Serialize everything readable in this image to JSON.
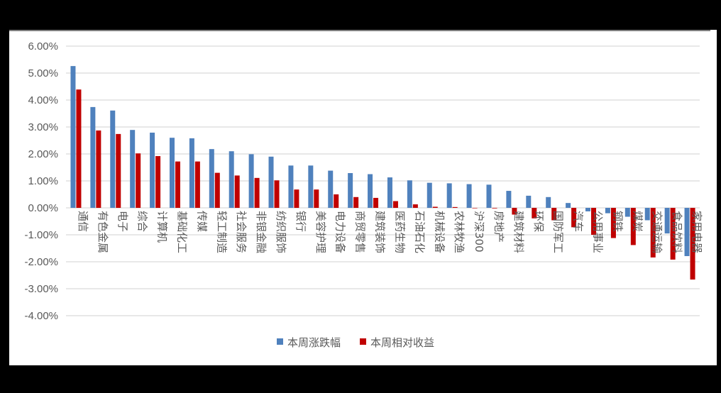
{
  "chart_data": {
    "type": "bar",
    "title": "",
    "xlabel": "",
    "ylabel": "",
    "ylim": [
      -0.04,
      0.06
    ],
    "yticks": [
      "6.00%",
      "5.00%",
      "4.00%",
      "3.00%",
      "2.00%",
      "1.00%",
      "0.00%",
      "-1.00%",
      "-2.00%",
      "-3.00%",
      "-4.00%"
    ],
    "grid": true,
    "legend_position": "bottom",
    "categories": [
      "通信",
      "有色金属",
      "电子",
      "综合",
      "计算机",
      "基础化工",
      "传媒",
      "轻工制造",
      "社会服务",
      "非银金融",
      "纺织服饰",
      "银行",
      "美容护理",
      "电力设备",
      "商贸零售",
      "建筑装饰",
      "医药生物",
      "石油石化",
      "机械设备",
      "农林牧渔",
      "沪深300",
      "房地产",
      "建筑材料",
      "环保",
      "国防军工",
      "汽车",
      "公用事业",
      "钢铁",
      "煤炭",
      "交通运输",
      "食品饮料",
      "家用电器"
    ],
    "series": [
      {
        "name": "本周涨跌幅",
        "color": "#4f81bd",
        "values": [
          5.26,
          3.74,
          3.61,
          2.89,
          2.79,
          2.6,
          2.58,
          2.18,
          2.1,
          1.99,
          1.9,
          1.57,
          1.57,
          1.38,
          1.29,
          1.25,
          1.13,
          1.02,
          0.93,
          0.91,
          0.88,
          0.86,
          0.63,
          0.45,
          0.4,
          0.18,
          -0.13,
          -0.2,
          -0.33,
          -0.46,
          -0.95,
          -1.79
        ]
      },
      {
        "name": "本周相对收益",
        "color": "#c00000",
        "values": [
          4.39,
          2.87,
          2.74,
          2.02,
          1.92,
          1.72,
          1.72,
          1.3,
          1.2,
          1.11,
          1.02,
          0.68,
          0.68,
          0.5,
          0.4,
          0.37,
          0.25,
          0.13,
          0.04,
          0.03,
          0.0,
          -0.02,
          -0.25,
          -0.39,
          -0.46,
          -0.72,
          -1.0,
          -1.12,
          -1.38,
          -1.84,
          -1.92,
          -2.66
        ]
      }
    ]
  },
  "legend": {
    "items": [
      {
        "label": "本周涨跌幅",
        "color": "#4f81bd"
      },
      {
        "label": "本周相对收益",
        "color": "#c00000"
      }
    ]
  },
  "style": {
    "grid_color": "#d9d9d9",
    "axis_color": "#d9d9d9",
    "text_color": "#595959"
  }
}
